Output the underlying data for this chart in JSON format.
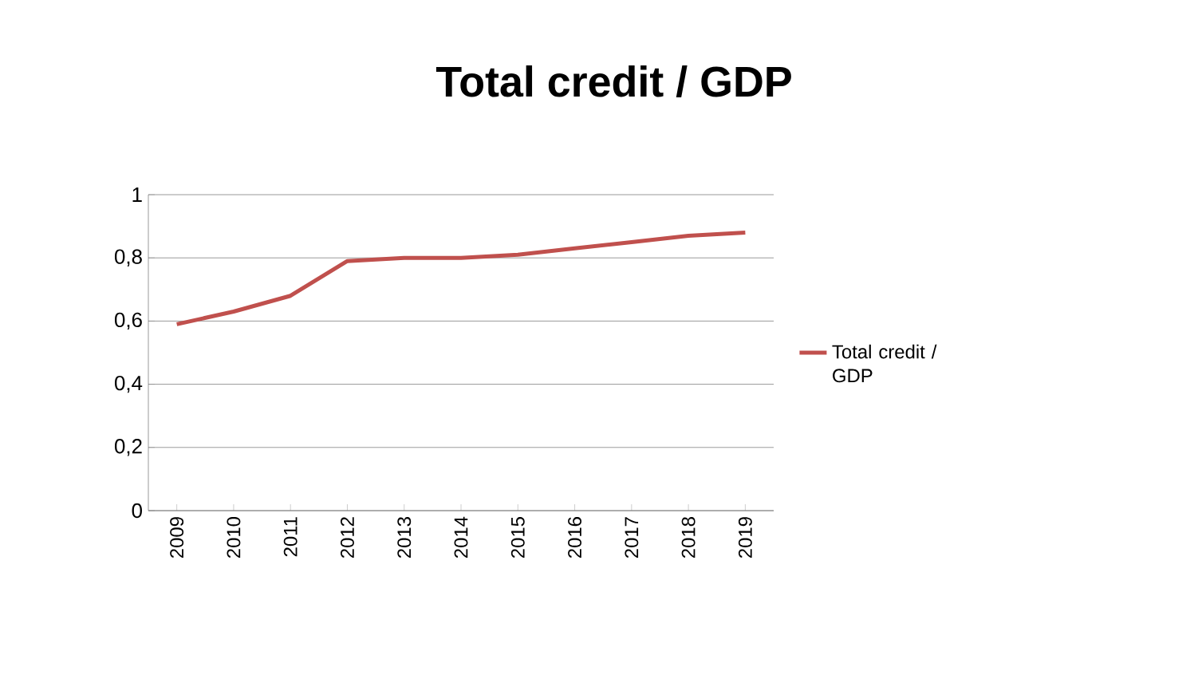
{
  "chart_data": {
    "type": "line",
    "title": "Total credit  / GDP",
    "categories": [
      "2009",
      "2010",
      "2011",
      "2012",
      "2013",
      "2014",
      "2015",
      "2016",
      "2017",
      "2018",
      "2019"
    ],
    "series": [
      {
        "name": "Total credit  / GDP",
        "color": "#c0504d",
        "values": [
          0.59,
          0.63,
          0.68,
          0.79,
          0.8,
          0.8,
          0.81,
          0.83,
          0.85,
          0.87,
          0.88
        ]
      }
    ],
    "ylim": [
      0,
      1
    ],
    "yticks": [
      0,
      {
        "value": 0.2,
        "label": "0,2"
      },
      {
        "value": 0.4,
        "label": "0,4"
      },
      {
        "value": 0.6,
        "label": "0,6"
      },
      {
        "value": 0.8,
        "label": "0,8"
      },
      1
    ],
    "grid": "y",
    "legend": "right",
    "marker": "none",
    "line_style": "solid"
  }
}
